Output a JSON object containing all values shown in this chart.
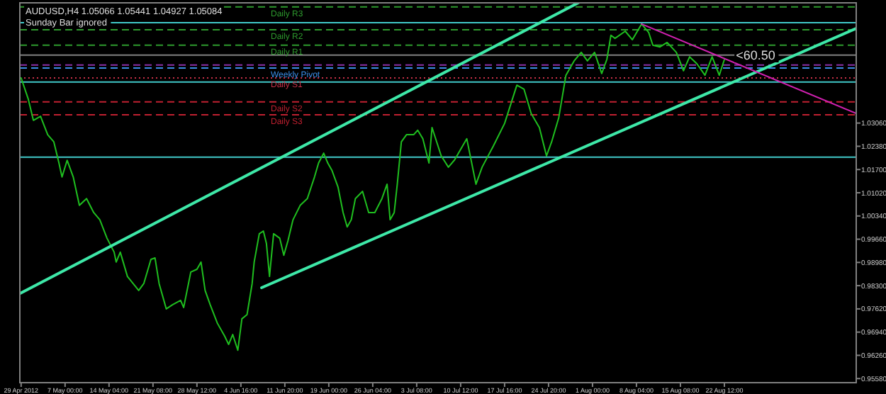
{
  "chart_data": {
    "type": "line",
    "title": "AUDUSD,H4  1.05066 1.05441 1.04927 1.05084",
    "annotations": [
      "Sunday Bar ignored",
      {
        "text": "<60.50",
        "x": "2012-08-24T09:00",
        "y": 1.0492
      }
    ],
    "xlim": [
      "2012-04-29T15:00",
      "2012-09-13T00:00"
    ],
    "ylim": [
      0.9546,
      1.0658
    ],
    "xticks": [
      {
        "value": "2012-04-29T20:00",
        "label": "29 Apr 2012"
      },
      {
        "value": "2012-05-07T00:00",
        "label": "7 May 00:00"
      },
      {
        "value": "2012-05-14T04:00",
        "label": "14 May 04:00"
      },
      {
        "value": "2012-05-21T08:00",
        "label": "21 May 08:00"
      },
      {
        "value": "2012-05-28T12:00",
        "label": "28 May 12:00"
      },
      {
        "value": "2012-06-04T16:00",
        "label": "4 Jun 16:00"
      },
      {
        "value": "2012-06-11T20:00",
        "label": "11 Jun 20:00"
      },
      {
        "value": "2012-06-19T00:00",
        "label": "19 Jun 00:00"
      },
      {
        "value": "2012-06-26T04:00",
        "label": "26 Jun 04:00"
      },
      {
        "value": "2012-07-03T08:00",
        "label": "3 Jul 08:00"
      },
      {
        "value": "2012-07-10T12:00",
        "label": "10 Jul 12:00"
      },
      {
        "value": "2012-07-17T16:00",
        "label": "17 Jul 16:00"
      },
      {
        "value": "2012-07-24T20:00",
        "label": "24 Jul 20:00"
      },
      {
        "value": "2012-08-01T00:00",
        "label": "1 Aug 00:00"
      },
      {
        "value": "2012-08-08T04:00",
        "label": "8 Aug 04:00"
      },
      {
        "value": "2012-08-15T08:00",
        "label": "15 Aug 08:00"
      },
      {
        "value": "2012-08-22T12:00",
        "label": "22 Aug 12:00"
      }
    ],
    "yticks": [
      {
        "value": 0.9558,
        "label": "0.95580"
      },
      {
        "value": 0.9626,
        "label": "0.96260"
      },
      {
        "value": 0.9694,
        "label": "0.96940"
      },
      {
        "value": 0.9762,
        "label": "0.97620"
      },
      {
        "value": 0.983,
        "label": "0.98300"
      },
      {
        "value": 0.9898,
        "label": "0.98980"
      },
      {
        "value": 0.9966,
        "label": "0.99660"
      },
      {
        "value": 1.0034,
        "label": "1.00340"
      },
      {
        "value": 1.0102,
        "label": "1.01020"
      },
      {
        "value": 1.017,
        "label": "1.01700"
      },
      {
        "value": 1.0238,
        "label": "1.02380"
      },
      {
        "value": 1.0306,
        "label": "1.03060"
      }
    ],
    "grid": false,
    "series": [
      {
        "color": "#1fbf1f",
        "x": [
          "2012-04-29T20:00",
          "2012-05-01T00:00",
          "2012-05-01T20:00",
          "2012-05-03T00:00",
          "2012-05-04T04:00",
          "2012-05-05T04:00",
          "2012-05-06T00:00",
          "2012-05-06T12:00",
          "2012-05-07T08:00",
          "2012-05-08T08:00",
          "2012-05-09T08:00",
          "2012-05-10T12:00",
          "2012-05-11T16:00",
          "2012-05-12T16:00",
          "2012-05-13T20:00",
          "2012-05-15T00:00",
          "2012-05-15T08:00",
          "2012-05-16T00:00",
          "2012-05-17T04:00",
          "2012-05-19T00:00",
          "2012-05-19T20:00",
          "2012-05-21T00:00",
          "2012-05-21T16:00",
          "2012-05-22T08:00",
          "2012-05-23T12:00",
          "2012-05-24T12:00",
          "2012-05-25T20:00",
          "2012-05-26T08:00",
          "2012-05-27T12:00",
          "2012-05-28T12:00",
          "2012-05-29T04:00",
          "2012-05-29T20:00",
          "2012-05-30T16:00",
          "2012-05-31T20:00",
          "2012-06-02T00:00",
          "2012-06-02T16:00",
          "2012-06-03T08:00",
          "2012-06-04T04:00",
          "2012-06-04T20:00",
          "2012-06-05T16:00",
          "2012-06-06T12:00",
          "2012-06-06T20:00",
          "2012-06-07T16:00",
          "2012-06-08T08:00",
          "2012-06-08T20:00",
          "2012-06-09T08:00",
          "2012-06-10T00:00",
          "2012-06-11T00:00",
          "2012-06-11T16:00",
          "2012-06-12T08:00",
          "2012-06-13T04:00",
          "2012-06-14T08:00",
          "2012-06-15T12:00",
          "2012-06-16T16:00",
          "2012-06-17T08:00",
          "2012-06-18T04:00",
          "2012-06-18T20:00",
          "2012-06-19T12:00",
          "2012-06-20T12:00",
          "2012-06-21T08:00",
          "2012-06-22T00:00",
          "2012-06-22T16:00",
          "2012-06-23T08:00",
          "2012-06-24T12:00",
          "2012-06-25T12:00",
          "2012-06-26T12:00",
          "2012-06-27T16:00",
          "2012-06-28T12:00",
          "2012-06-29T00:00",
          "2012-06-29T16:00",
          "2012-06-30T04:00",
          "2012-06-30T20:00",
          "2012-07-01T16:00",
          "2012-07-02T20:00",
          "2012-07-03T12:00",
          "2012-07-04T08:00",
          "2012-07-05T08:00",
          "2012-07-05T20:00",
          "2012-07-07T08:00",
          "2012-07-08T12:00",
          "2012-07-09T12:00",
          "2012-07-11T12:00",
          "2012-07-13T00:00",
          "2012-07-14T00:00",
          "2012-07-15T20:00",
          "2012-07-17T16:00",
          "2012-07-19T16:00",
          "2012-07-20T20:00",
          "2012-07-22T00:00",
          "2012-07-23T08:00",
          "2012-07-24T12:00",
          "2012-07-25T08:00",
          "2012-07-26T12:00",
          "2012-07-27T16:00",
          "2012-07-29T00:00",
          "2012-07-30T04:00",
          "2012-07-31T04:00",
          "2012-08-01T08:00",
          "2012-08-02T12:00",
          "2012-08-03T08:00",
          "2012-08-04T00:00",
          "2012-08-04T16:00",
          "2012-08-06T08:00",
          "2012-08-07T12:00",
          "2012-08-09T00:00",
          "2012-08-10T04:00",
          "2012-08-10T20:00",
          "2012-08-12T00:00",
          "2012-08-13T04:00",
          "2012-08-14T16:00",
          "2012-08-15T20:00",
          "2012-08-16T20:00",
          "2012-08-18T00:00",
          "2012-08-19T08:00",
          "2012-08-20T12:00",
          "2012-08-21T16:00",
          "2012-08-22T12:00"
        ],
        "values": [
          1.0438,
          1.0376,
          1.0314,
          1.0326,
          1.0272,
          1.0251,
          1.0189,
          1.0148,
          1.0197,
          1.0148,
          1.0065,
          1.0085,
          1.0044,
          1.0023,
          0.9969,
          0.9928,
          0.9899,
          0.9928,
          0.9857,
          0.9816,
          0.9836,
          0.9907,
          0.9911,
          0.9836,
          0.9762,
          0.9774,
          0.9787,
          0.9766,
          0.987,
          0.9878,
          0.9899,
          0.9816,
          0.9774,
          0.972,
          0.9683,
          0.9658,
          0.9687,
          0.9641,
          0.9733,
          0.9745,
          0.9836,
          0.9899,
          0.9982,
          0.999,
          0.9953,
          0.9857,
          0.9982,
          0.9969,
          0.9919,
          0.9961,
          1.0023,
          1.0065,
          1.0085,
          1.0148,
          1.0189,
          1.0218,
          1.0189,
          1.0168,
          1.0119,
          1.0044,
          1.0002,
          1.0023,
          1.0085,
          1.0106,
          1.0044,
          1.0044,
          1.0085,
          1.0127,
          1.0023,
          1.0044,
          1.0127,
          1.0251,
          1.0272,
          1.0272,
          1.0285,
          1.026,
          1.0189,
          1.0293,
          1.021,
          1.0177,
          1.0198,
          1.026,
          1.0127,
          1.0177,
          1.0239,
          1.0305,
          1.0417,
          1.0405,
          1.0334,
          1.0293,
          1.021,
          1.0251,
          1.0322,
          1.0446,
          1.0488,
          1.0513,
          1.0488,
          1.0513,
          1.0451,
          1.0492,
          1.0563,
          1.0554,
          1.0575,
          1.055,
          1.0596,
          1.0571,
          1.0534,
          1.0529,
          1.0542,
          1.0513,
          1.0459,
          1.05,
          1.048,
          1.0446,
          1.05,
          1.0446,
          1.0492
        ]
      },
      {
        "color": "#3ee8a8",
        "x": [
          "2012-04-29T15:00",
          "2012-07-29T16:00"
        ],
        "values": [
          0.9807,
          1.0658
        ]
      },
      {
        "color": "#3ee8a8",
        "x": [
          "2012-06-08T01:00",
          "2012-09-13T00:00"
        ],
        "values": [
          0.9824,
          1.0583
        ]
      },
      {
        "color": "#d020b0",
        "x": [
          "2012-08-09T00:00",
          "2012-09-13T00:00"
        ],
        "values": [
          1.0596,
          1.0334
        ]
      }
    ],
    "ref_lines": [
      {
        "axis": "y",
        "value": 1.0646,
        "label": "Daily R3",
        "color": "#2e9a2e",
        "line_style": "dashed"
      },
      {
        "axis": "y",
        "value": 1.06,
        "color": "#40c8c8",
        "line_style": "solid"
      },
      {
        "axis": "y",
        "value": 1.0579,
        "label": "Daily R2",
        "color": "#2e9a2e",
        "line_style": "dashed"
      },
      {
        "axis": "y",
        "value": 1.0534,
        "label": "Daily R1",
        "color": "#2e9a2e",
        "line_style": "dashed"
      },
      {
        "axis": "y",
        "value": 1.0505,
        "color": "#808080",
        "line_style": "solid"
      },
      {
        "axis": "y",
        "value": 1.0476,
        "color": "#8a30a8",
        "line_style": "dashed"
      },
      {
        "axis": "y",
        "value": 1.0467,
        "label": "Weekly Pivot",
        "color": "#3a8ee8",
        "line_style": "dashed"
      },
      {
        "axis": "y",
        "value": 1.0438,
        "label": "Daily S1",
        "color": "#c83048",
        "line_style": "dotted"
      },
      {
        "axis": "y",
        "value": 1.0426,
        "color": "#40c8c8",
        "line_style": "solid"
      },
      {
        "axis": "y",
        "value": 1.0368,
        "label": "Daily S2",
        "color": "#c02030",
        "line_style": "dashed"
      },
      {
        "axis": "y",
        "value": 1.033,
        "label": "Daily S3",
        "color": "#c02030",
        "line_style": "dashed"
      },
      {
        "axis": "y",
        "value": 1.0206,
        "color": "#40c8c8",
        "line_style": "solid"
      }
    ]
  }
}
